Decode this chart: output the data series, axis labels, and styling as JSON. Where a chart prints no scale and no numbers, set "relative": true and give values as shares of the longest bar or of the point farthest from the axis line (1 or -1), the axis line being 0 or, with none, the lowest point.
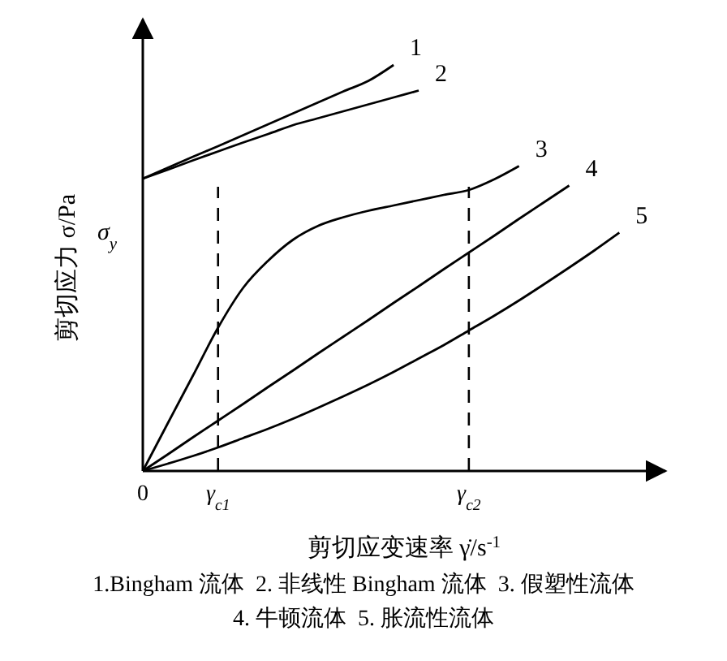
{
  "chart_data": {
    "type": "line",
    "relative": true,
    "xlabel": "剪切应变速率 γ̇/s$^{-1}$",
    "ylabel": "剪切应力 σ/Pa",
    "categories": [
      "0",
      null,
      null,
      "γ$_{c1}$",
      null,
      null,
      null,
      null,
      null,
      null,
      null,
      null,
      null,
      "γ$_{c2}$",
      null,
      null,
      null,
      null,
      null,
      null,
      null
    ],
    "series": [
      {
        "name": "1",
        "color": "#000000",
        "values": [
          0.72,
          0.747,
          0.774,
          0.8,
          0.827,
          0.854,
          0.881,
          0.908,
          0.935,
          0.961,
          1.0,
          null,
          null,
          null,
          null,
          null,
          null,
          null,
          null,
          null,
          null
        ]
      },
      {
        "name": "2",
        "color": "#000000",
        "values": [
          0.72,
          0.742,
          0.765,
          0.787,
          0.809,
          0.83,
          0.852,
          0.869,
          0.886,
          0.903,
          0.92,
          0.937,
          null,
          null,
          null,
          null,
          null,
          null,
          null,
          null,
          null
        ]
      },
      {
        "name": "3",
        "color": "#000000",
        "values": [
          0,
          0.118,
          0.235,
          0.353,
          0.451,
          0.518,
          0.57,
          0.604,
          0.625,
          0.641,
          0.654,
          0.667,
          0.68,
          0.692,
          0.718,
          0.751,
          null,
          null,
          null,
          null,
          null
        ]
      },
      {
        "name": "4",
        "color": "#000000",
        "values": [
          0,
          0.041,
          0.083,
          0.124,
          0.165,
          0.207,
          0.248,
          0.29,
          0.331,
          0.372,
          0.414,
          0.455,
          0.497,
          0.538,
          0.579,
          0.621,
          0.662,
          0.703,
          null,
          null,
          null
        ]
      },
      {
        "name": "5",
        "color": "#000000",
        "values": [
          0,
          0.018,
          0.037,
          0.058,
          0.081,
          0.104,
          0.129,
          0.156,
          0.184,
          0.213,
          0.244,
          0.277,
          0.31,
          0.346,
          0.382,
          0.42,
          0.46,
          0.501,
          0.543,
          0.587,
          null
        ]
      }
    ],
    "ref_lines": [
      {
        "axis": "x",
        "value": "γ$_{c1}$",
        "line_style": "dashed",
        "color": "#000000"
      },
      {
        "axis": "x",
        "value": "γ$_{c2}$",
        "line_style": "dashed",
        "color": "#000000"
      }
    ],
    "annotations": [
      "σ$_{y}$",
      "1.Bingham 流体  2. 非线性 Bingham 流体  3. 假塑性流体",
      "4. 牛顿流体  5. 胀流性流体"
    ],
    "line_style": "solid",
    "marker": "none"
  }
}
